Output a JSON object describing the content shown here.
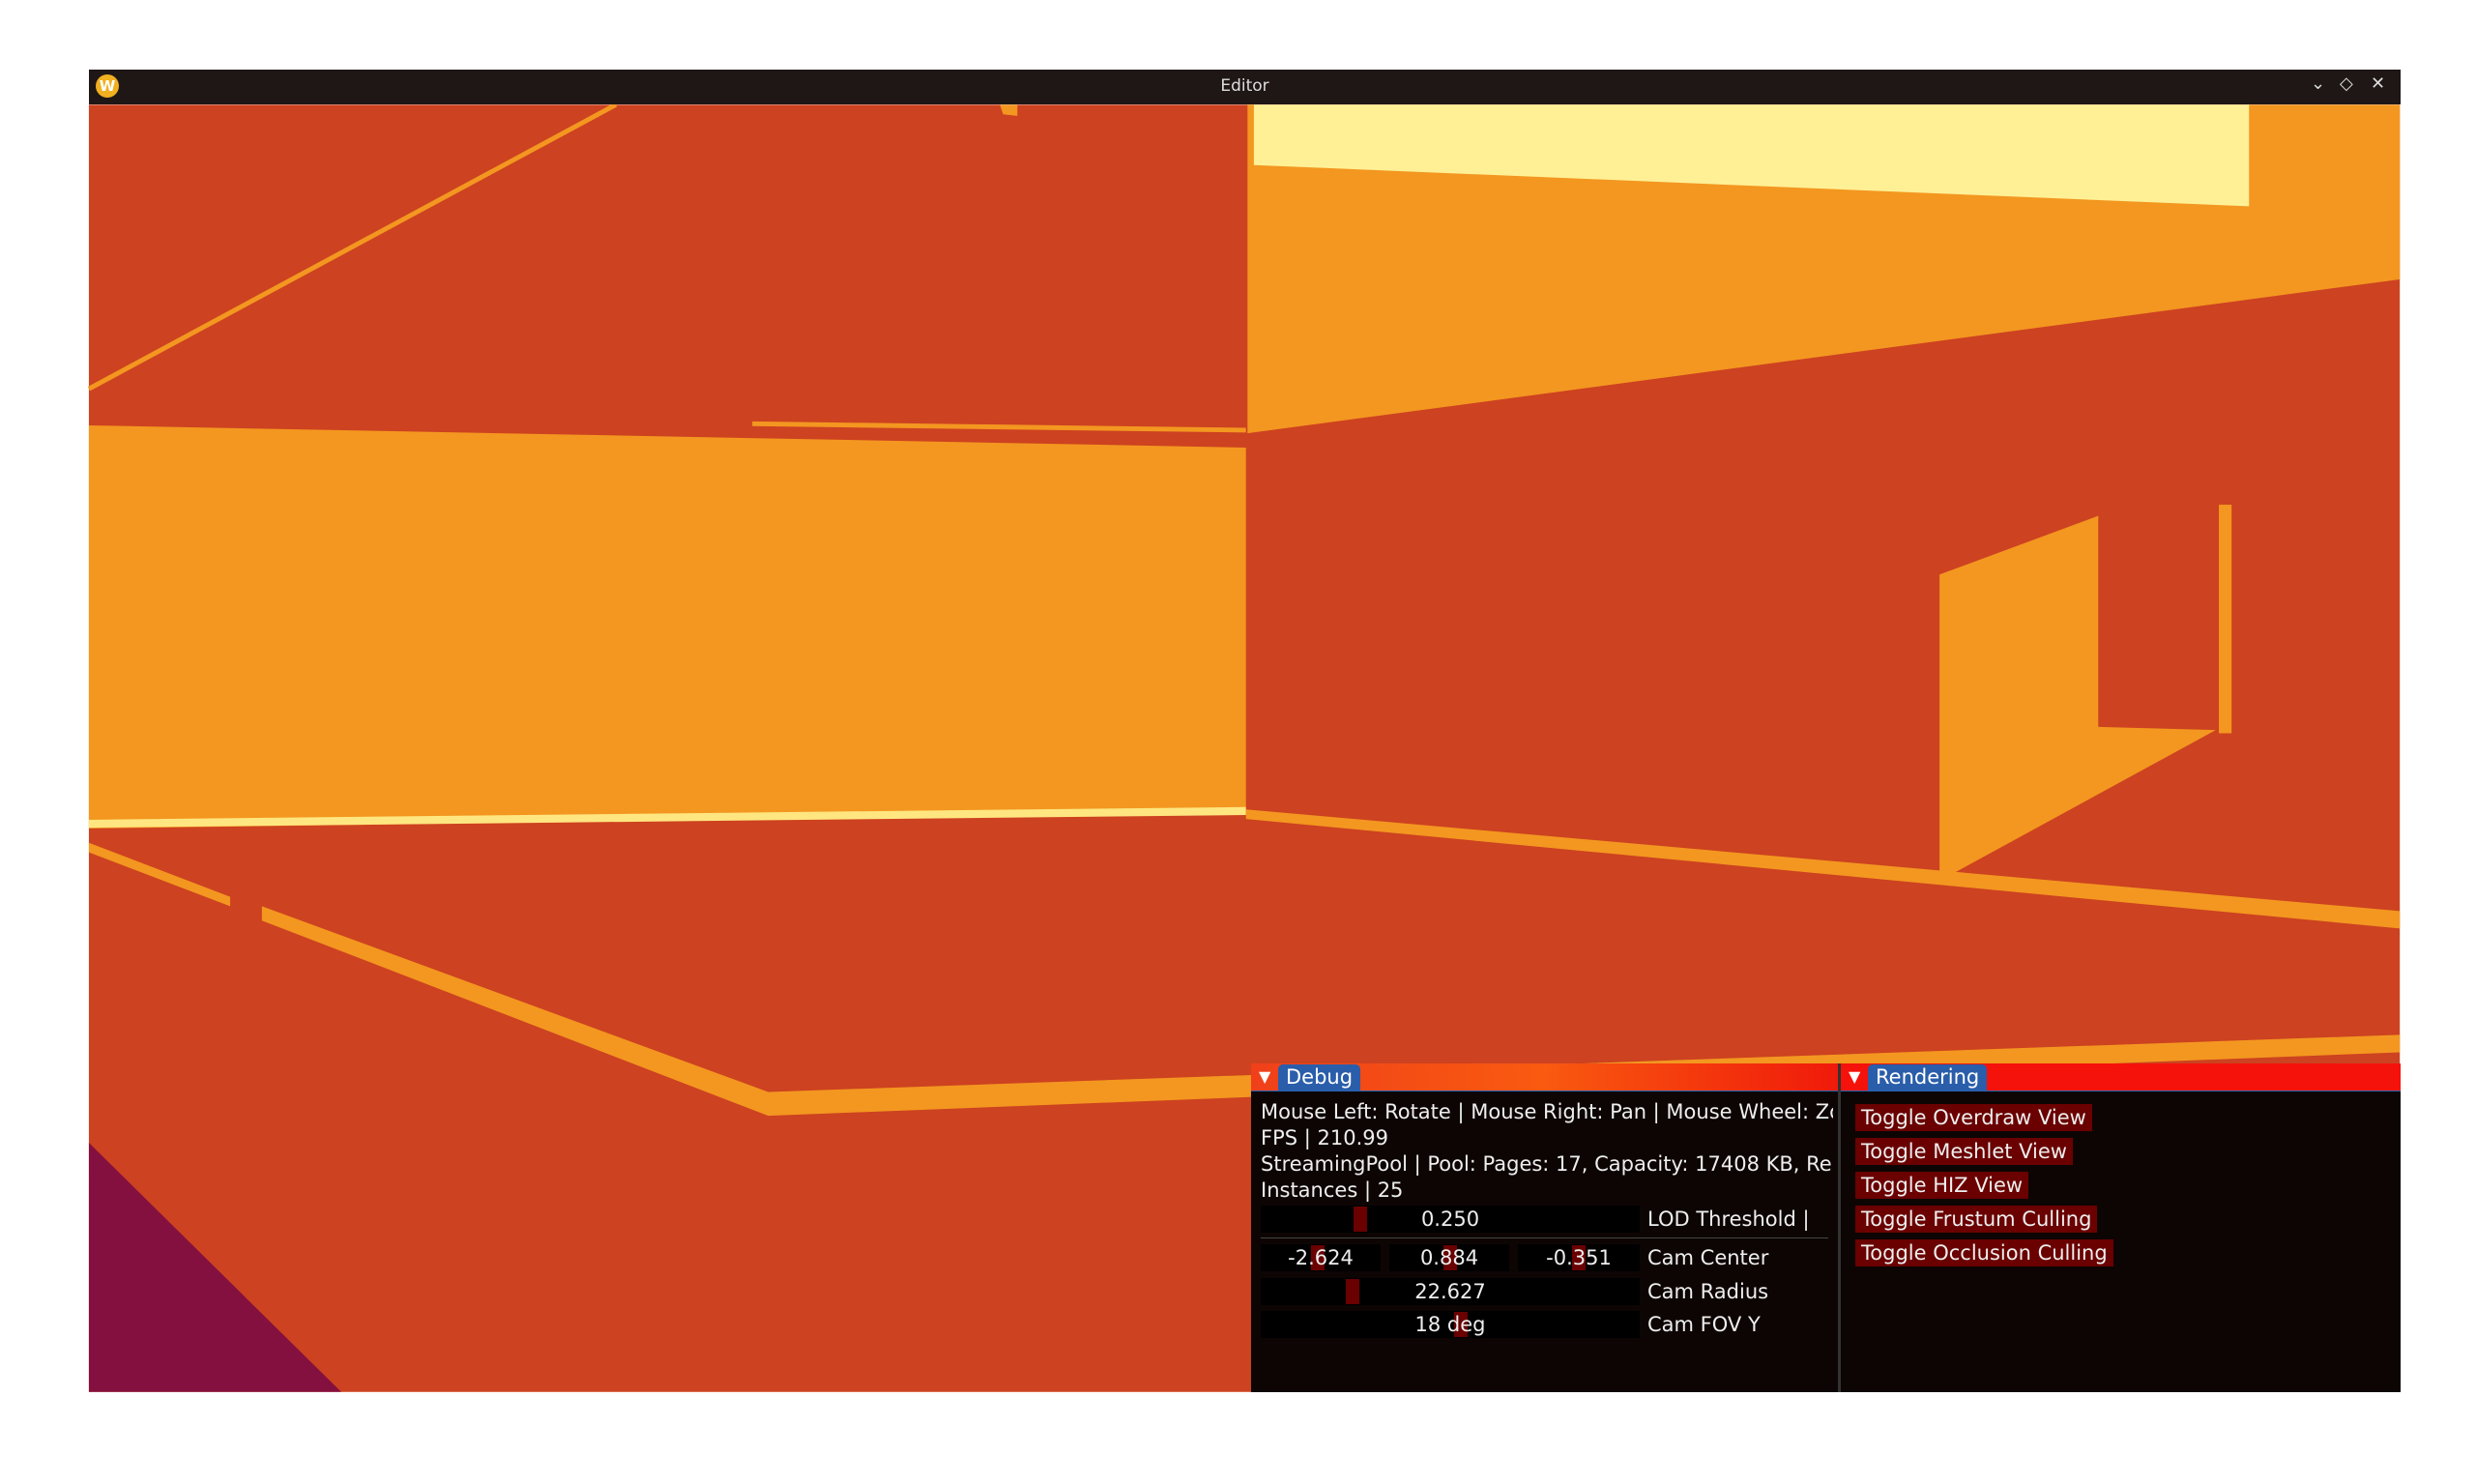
{
  "window": {
    "title": "Editor",
    "logo": "W",
    "controls": [
      "minimize-icon",
      "maximize-icon",
      "close-icon"
    ]
  },
  "colors": {
    "background_red": "#CD4220",
    "wall_orange": "#F39720",
    "highlight_yellow": "#FFF096",
    "purple": "#84103F",
    "panel_bg": "#0D0504",
    "button_bg": "#6A0000",
    "tab_blue": "#2A5EAA"
  },
  "debug": {
    "tab": "Debug",
    "lines": [
      "Mouse Left: Rotate | Mouse Right: Pan | Mouse Wheel: Zo",
      "FPS | 210.99",
      "StreamingPool | Pool: Pages: 17, Capacity: 17408 KB, Re",
      "Instances | 25"
    ],
    "lod": {
      "value": "0.250",
      "label": "LOD Threshold |"
    },
    "cam_center": {
      "x": "-2.624",
      "y": "0.884",
      "z": "-0.351",
      "label": "Cam Center"
    },
    "cam_radius": {
      "value": "22.627",
      "label": "Cam Radius"
    },
    "cam_fov": {
      "value": "18 deg",
      "label": "Cam FOV Y"
    }
  },
  "rendering": {
    "tab": "Rendering",
    "buttons": [
      "Toggle Overdraw View",
      "Toggle Meshlet View",
      "Toggle HIZ View",
      "Toggle Frustum Culling",
      "Toggle Occlusion Culling"
    ]
  }
}
